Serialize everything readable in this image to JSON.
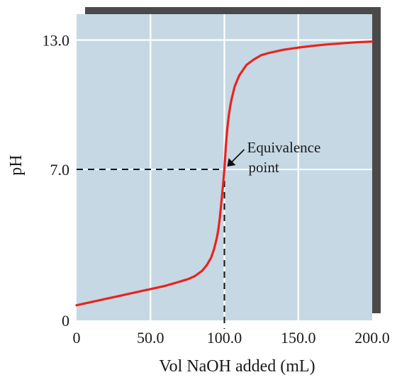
{
  "colors": {
    "plot_background": "#c5d8e4",
    "gridline": "#ffffff",
    "curve": "#e8231f",
    "shadow": "#4a4a4a",
    "guide": "#111111"
  },
  "chart_data": {
    "type": "line",
    "xlabel": "Vol NaOH added (mL)",
    "ylabel": "pH",
    "xlim": [
      0,
      200
    ],
    "ylim": [
      0,
      14.2
    ],
    "grid": true,
    "x_ticks": [
      {
        "value": 0,
        "label": "0"
      },
      {
        "value": 50,
        "label": "50.0"
      },
      {
        "value": 100,
        "label": "100.0"
      },
      {
        "value": 150,
        "label": "150.0"
      },
      {
        "value": 200,
        "label": "200.0"
      }
    ],
    "y_ticks": [
      {
        "value": 0,
        "label": "0"
      },
      {
        "value": 7,
        "label": "7.0"
      },
      {
        "value": 13,
        "label": "13.0"
      }
    ],
    "series": [
      {
        "x": [
          0,
          10,
          20,
          30,
          40,
          50,
          60,
          70,
          75,
          80,
          85,
          88,
          91,
          93,
          95,
          96,
          97,
          98,
          99,
          99.5,
          100,
          100.5,
          101,
          102,
          103,
          104,
          105,
          107,
          110,
          115,
          120,
          125,
          130,
          140,
          150,
          160,
          170,
          180,
          190,
          200
        ],
        "y": [
          0.7,
          0.85,
          1.0,
          1.15,
          1.3,
          1.45,
          1.6,
          1.8,
          1.9,
          2.05,
          2.3,
          2.55,
          2.9,
          3.3,
          3.85,
          4.25,
          4.8,
          5.5,
          6.2,
          6.6,
          7.0,
          7.5,
          8.1,
          8.9,
          9.5,
          9.95,
          10.3,
          10.85,
          11.35,
          11.85,
          12.1,
          12.3,
          12.4,
          12.55,
          12.65,
          12.73,
          12.8,
          12.85,
          12.9,
          12.93
        ]
      }
    ],
    "equivalence_point": {
      "x": 100,
      "y": 7.0
    },
    "annotations": [
      {
        "text_lines": [
          "Equivalence",
          "point"
        ]
      }
    ]
  }
}
